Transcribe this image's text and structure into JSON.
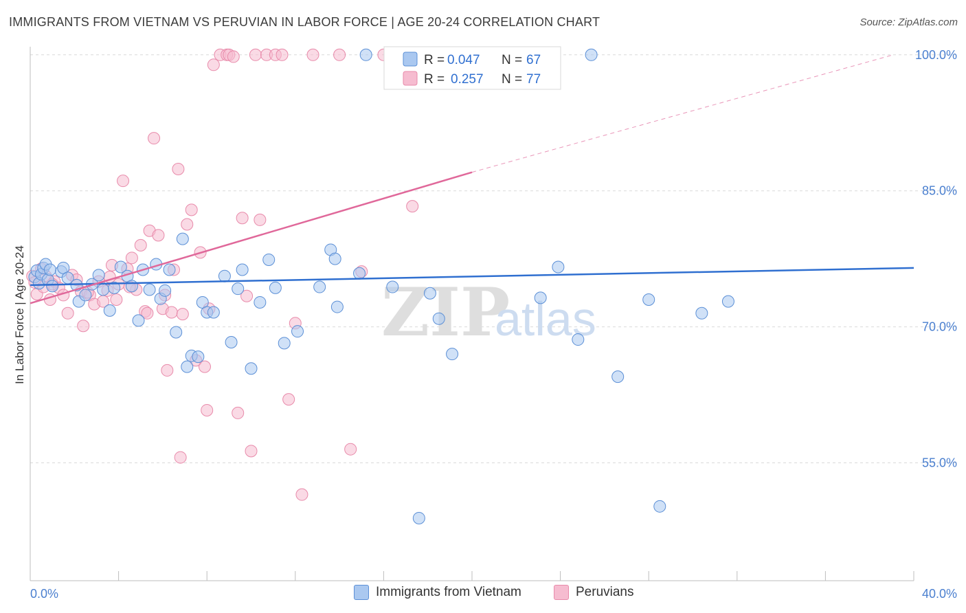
{
  "title": "IMMIGRANTS FROM VIETNAM VS PERUVIAN IN LABOR FORCE | AGE 20-24 CORRELATION CHART",
  "source": "Source: ZipAtlas.com",
  "watermark": {
    "zip": "ZIP",
    "atlas": "atlas"
  },
  "colors": {
    "blue_fill": "#aac8f0",
    "blue_stroke": "#5b8fd6",
    "blue_line": "#2f6fd0",
    "pink_fill": "#f6bcd0",
    "pink_stroke": "#e88aaa",
    "pink_line": "#e0689a",
    "axis_text": "#4a7fcf",
    "grid": "#d9d9d9"
  },
  "legend_box": {
    "rows": [
      {
        "r_label": "R =",
        "r_value": "0.047",
        "n_label": "N =",
        "n_value": "67"
      },
      {
        "r_label": "R =",
        "r_value": "0.257",
        "n_label": "N =",
        "n_value": "77"
      }
    ]
  },
  "legend_bottom": [
    {
      "label": "Immigrants from Vietnam"
    },
    {
      "label": "Peruvians"
    }
  ],
  "chart_data": {
    "type": "scatter",
    "title": "IMMIGRANTS FROM VIETNAM VS PERUVIAN IN LABOR FORCE | AGE 20-24 CORRELATION CHART",
    "xlabel": "",
    "ylabel": "In Labor Force | Age 20-24",
    "xlim": [
      0,
      40
    ],
    "ylim": [
      42,
      101.5
    ],
    "x_tick_labels": [
      "0.0%",
      "40.0%"
    ],
    "y_ticks": [
      55,
      70,
      85,
      100
    ],
    "y_tick_labels": [
      "55.0%",
      "70.0%",
      "85.0%",
      "100.0%"
    ],
    "grid": true,
    "legend_position": "top-center",
    "series": [
      {
        "name": "Immigrants from Vietnam",
        "color": "#aac8f0",
        "stats": {
          "R": 0.047,
          "N": 67
        },
        "trend": {
          "x": [
            0,
            40
          ],
          "y": [
            74.6,
            76.5
          ]
        },
        "points": [
          [
            0.2,
            75.5
          ],
          [
            0.3,
            76.2
          ],
          [
            0.4,
            74.8
          ],
          [
            0.5,
            75.8
          ],
          [
            0.6,
            76.5
          ],
          [
            0.7,
            76.9
          ],
          [
            0.8,
            75.2
          ],
          [
            0.9,
            76.3
          ],
          [
            1.0,
            74.5
          ],
          [
            1.4,
            76.1
          ],
          [
            1.5,
            76.5
          ],
          [
            1.7,
            75.4
          ],
          [
            2.1,
            74.6
          ],
          [
            2.2,
            72.8
          ],
          [
            2.5,
            73.5
          ],
          [
            2.8,
            74.7
          ],
          [
            3.1,
            75.7
          ],
          [
            3.3,
            74.1
          ],
          [
            3.6,
            71.8
          ],
          [
            3.8,
            74.3
          ],
          [
            4.1,
            76.6
          ],
          [
            4.4,
            75.6
          ],
          [
            4.6,
            74.5
          ],
          [
            4.9,
            70.7
          ],
          [
            5.1,
            76.3
          ],
          [
            5.4,
            74.1
          ],
          [
            5.7,
            76.9
          ],
          [
            5.9,
            73.1
          ],
          [
            6.1,
            74.0
          ],
          [
            6.3,
            76.3
          ],
          [
            6.6,
            69.4
          ],
          [
            6.9,
            79.7
          ],
          [
            7.1,
            65.6
          ],
          [
            7.3,
            66.8
          ],
          [
            7.6,
            66.7
          ],
          [
            7.8,
            72.7
          ],
          [
            8.0,
            71.6
          ],
          [
            8.3,
            71.6
          ],
          [
            8.8,
            75.6
          ],
          [
            9.1,
            68.3
          ],
          [
            9.4,
            74.2
          ],
          [
            9.6,
            76.3
          ],
          [
            10.0,
            65.4
          ],
          [
            10.4,
            72.7
          ],
          [
            10.8,
            77.4
          ],
          [
            11.1,
            74.3
          ],
          [
            11.5,
            68.2
          ],
          [
            12.1,
            69.5
          ],
          [
            13.1,
            74.4
          ],
          [
            13.6,
            78.5
          ],
          [
            13.8,
            77.5
          ],
          [
            13.9,
            72.2
          ],
          [
            14.9,
            75.9
          ],
          [
            15.2,
            100
          ],
          [
            16.4,
            74.4
          ],
          [
            17.6,
            48.9
          ],
          [
            18.1,
            73.7
          ],
          [
            18.5,
            70.9
          ],
          [
            19.1,
            67.0
          ],
          [
            23.1,
            73.2
          ],
          [
            23.9,
            76.6
          ],
          [
            24.8,
            68.6
          ],
          [
            25.4,
            100
          ],
          [
            26.6,
            64.5
          ],
          [
            28.0,
            73.0
          ],
          [
            28.5,
            50.2
          ],
          [
            30.4,
            71.5
          ],
          [
            31.6,
            72.8
          ]
        ]
      },
      {
        "name": "Peruvians",
        "color": "#f6bcd0",
        "stats": {
          "R": 0.257,
          "N": 77
        },
        "trend": {
          "x": [
            0,
            40
          ],
          "y": [
            72.6,
            101.5
          ]
        },
        "points": [
          [
            0.1,
            75.6
          ],
          [
            0.2,
            74.9
          ],
          [
            0.3,
            73.6
          ],
          [
            0.5,
            76.4
          ],
          [
            0.6,
            74.4
          ],
          [
            0.7,
            75.6
          ],
          [
            0.9,
            73.0
          ],
          [
            1.1,
            75.0
          ],
          [
            1.3,
            74.3
          ],
          [
            1.5,
            73.5
          ],
          [
            1.7,
            71.5
          ],
          [
            1.9,
            75.7
          ],
          [
            2.1,
            75.2
          ],
          [
            2.3,
            73.9
          ],
          [
            2.4,
            70.1
          ],
          [
            2.7,
            73.5
          ],
          [
            2.9,
            72.5
          ],
          [
            3.1,
            75.0
          ],
          [
            3.3,
            72.8
          ],
          [
            3.5,
            74.0
          ],
          [
            3.7,
            76.8
          ],
          [
            3.9,
            73.0
          ],
          [
            4.0,
            74.7
          ],
          [
            4.2,
            86.1
          ],
          [
            4.4,
            76.4
          ],
          [
            4.6,
            77.6
          ],
          [
            4.8,
            74.1
          ],
          [
            5.0,
            79.0
          ],
          [
            5.2,
            71.7
          ],
          [
            5.4,
            80.6
          ],
          [
            5.6,
            90.8
          ],
          [
            5.8,
            80.1
          ],
          [
            6.0,
            72.0
          ],
          [
            6.1,
            73.5
          ],
          [
            6.2,
            65.2
          ],
          [
            6.4,
            71.6
          ],
          [
            6.5,
            76.3
          ],
          [
            6.7,
            87.4
          ],
          [
            6.9,
            71.4
          ],
          [
            7.1,
            81.3
          ],
          [
            7.3,
            82.9
          ],
          [
            7.5,
            66.3
          ],
          [
            7.7,
            78.2
          ],
          [
            7.9,
            65.6
          ],
          [
            8.0,
            60.8
          ],
          [
            8.1,
            72.0
          ],
          [
            8.3,
            98.9
          ],
          [
            8.6,
            100
          ],
          [
            8.9,
            100
          ],
          [
            9.0,
            100
          ],
          [
            9.2,
            99.8
          ],
          [
            9.4,
            60.5
          ],
          [
            9.6,
            82.0
          ],
          [
            9.8,
            73.4
          ],
          [
            10.0,
            56.3
          ],
          [
            10.2,
            100
          ],
          [
            10.4,
            81.8
          ],
          [
            10.7,
            100
          ],
          [
            11.1,
            100
          ],
          [
            11.4,
            100
          ],
          [
            11.7,
            62.0
          ],
          [
            12.0,
            70.4
          ],
          [
            12.3,
            51.5
          ],
          [
            12.8,
            100
          ],
          [
            14.0,
            100
          ],
          [
            14.5,
            56.5
          ],
          [
            15.0,
            76.1
          ],
          [
            16.0,
            100
          ],
          [
            16.9,
            100
          ],
          [
            17.3,
            83.3
          ],
          [
            19.3,
            100
          ],
          [
            4.5,
            74.4
          ],
          [
            3.6,
            75.5
          ],
          [
            2.6,
            73.8
          ],
          [
            6.8,
            55.6
          ],
          [
            5.3,
            71.5
          ],
          [
            1.0,
            74.7
          ]
        ]
      }
    ]
  }
}
